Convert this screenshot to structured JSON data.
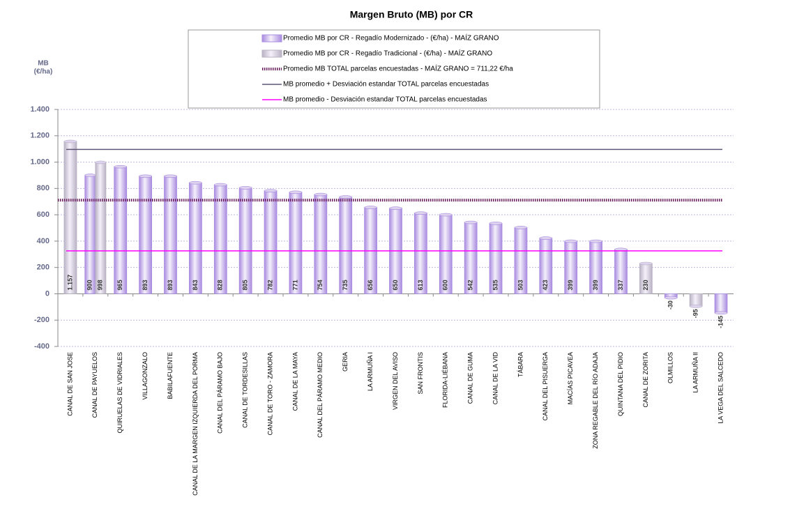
{
  "chart_data": {
    "type": "bar",
    "title": "Margen Bruto (MB) por CR",
    "ylabel": [
      "MB",
      "(€/ha)"
    ],
    "categories": [
      "CANAL DE SAN JOSE",
      "CANAL DE PAYUELOS",
      "QUIRUELAS DE VIDRIALES",
      "VILLAGONZALO",
      "BABILAFUENTE",
      "CANAL DE LA MARGEN IZQUIERDA DEL PORMA",
      "CANAL DEL PÁRAMO BAJO",
      "CANAL DE TORDESILLAS",
      "CANAL DE TORO - ZAMORA",
      "CANAL DE LA MAYA",
      "CANAL DEL PÁRAMO MEDIO",
      "GERIA",
      "LA ARMUÑA I",
      "VIRGEN DEL AVISO",
      "SAN FRONTIS",
      "FLORIDA-LIÉBANA",
      "CANAL DE GUMA",
      "CANAL DE LA VID",
      "TÁBARA",
      "CANAL DEL PISUERGA",
      "MACÍAS PICAVEA",
      "ZONA REGABLE DEL RÍO ADAJA",
      "QUINTANA DEL PIDIO",
      "CANAL DE ZORITA",
      "OLMILLOS",
      "LA ARMUÑA II",
      "LA VEGA DEL SALCEDO"
    ],
    "series": [
      {
        "name": "Promedio  MB  por CR - Regadío Modernizado - (€/ha) - MAÍZ GRANO",
        "color": "#a98be0",
        "values": [
          null,
          900,
          965,
          893,
          893,
          843,
          828,
          805,
          782,
          771,
          754,
          735,
          656,
          650,
          613,
          600,
          542,
          535,
          503,
          423,
          399,
          399,
          337,
          null,
          -30,
          null,
          -145
        ]
      },
      {
        "name": "Promedio  MB  por CR - Regadío Tradicional - (€/ha) - MAÍZ GRANO",
        "color": "#b9b2c4",
        "values": [
          1157,
          998,
          null,
          null,
          null,
          null,
          null,
          null,
          null,
          null,
          null,
          null,
          null,
          null,
          null,
          null,
          null,
          null,
          null,
          null,
          null,
          null,
          null,
          230,
          null,
          -95,
          null
        ],
        "value_labels": [
          "1.157",
          "998",
          null,
          null,
          null,
          null,
          null,
          null,
          null,
          null,
          null,
          null,
          null,
          null,
          null,
          null,
          null,
          null,
          null,
          null,
          null,
          null,
          null,
          "230",
          null,
          "-95",
          null
        ]
      }
    ],
    "reference_lines": [
      {
        "name": "Promedio  MB TOTAL parcelas encuestadas - MAÍZ GRANO  = 711,22 €/ha",
        "value": 711.22,
        "color": "#6b1f5f",
        "style": "dotted"
      },
      {
        "name": "MB promedio + Desviación estandar TOTAL parcelas encuestadas",
        "value": 1096,
        "color": "#5e5577",
        "style": "solid"
      },
      {
        "name": "MB promedio - Desviación estandar TOTAL parcelas encuestadas",
        "value": 326,
        "color": "#ff00ff",
        "style": "solid"
      }
    ],
    "ylim": [
      -400,
      1400
    ],
    "yticks": [
      -400,
      -200,
      0,
      200,
      400,
      600,
      800,
      {
        "value": 1000,
        "label": "1.000"
      },
      {
        "value": 1200,
        "label": "1.200"
      },
      {
        "value": 1400,
        "label": "1.400"
      }
    ],
    "grid": true
  }
}
